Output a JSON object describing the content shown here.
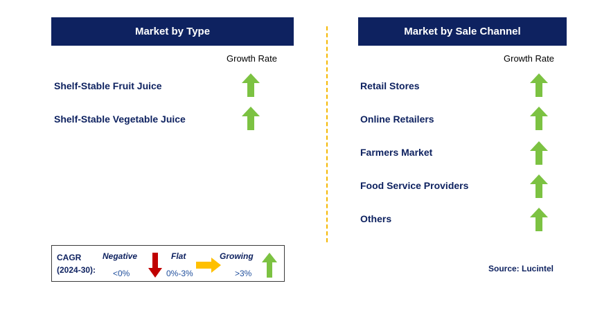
{
  "market_by_type": {
    "title": "Market by Type",
    "growth_rate_label": "Growth Rate",
    "rows": [
      {
        "label": "Shelf-Stable Fruit Juice",
        "trend": "growing"
      },
      {
        "label": "Shelf-Stable Vegetable Juice",
        "trend": "growing"
      }
    ]
  },
  "market_by_channel": {
    "title": "Market by Sale Channel",
    "growth_rate_label": "Growth Rate",
    "rows": [
      {
        "label": "Retail Stores",
        "trend": "growing"
      },
      {
        "label": "Online Retailers",
        "trend": "growing"
      },
      {
        "label": "Farmers Market",
        "trend": "growing"
      },
      {
        "label": "Food Service Providers",
        "trend": "growing"
      },
      {
        "label": "Others",
        "trend": "growing"
      }
    ]
  },
  "legend": {
    "cagr_line1": "CAGR",
    "cagr_line2": "(2024-30):",
    "negative": {
      "label": "Negative",
      "range": "<0%",
      "icon": "down-arrow-icon",
      "color": "#c00000"
    },
    "flat": {
      "label": "Flat",
      "range": "0%-3%",
      "icon": "right-arrow-icon",
      "color": "#ffc000"
    },
    "growing": {
      "label": "Growing",
      "range": ">3%",
      "icon": "up-arrow-icon",
      "color": "#7cc242"
    }
  },
  "source": "Source: Lucintel",
  "colors": {
    "header_bg": "#0e2260",
    "label_text": "#0e2260",
    "divider": "#f5b800",
    "growth_arrow": "#7cc242"
  }
}
